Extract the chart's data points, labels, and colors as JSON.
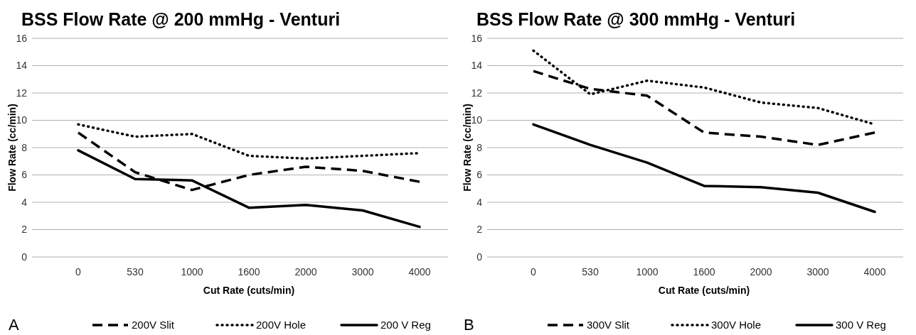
{
  "chart_data": [
    {
      "type": "line",
      "title": "BSS Flow Rate @ 200 mmHg - Venturi",
      "xlabel": "Cut Rate (cuts/min)",
      "ylabel": "Flow Rate (cc/min)",
      "categories": [
        "0",
        "530",
        "1000",
        "1600",
        "2000",
        "3000",
        "4000"
      ],
      "ylim": [
        0,
        16
      ],
      "yticks": [
        0,
        2,
        4,
        6,
        8,
        10,
        12,
        14,
        16
      ],
      "grid": "y",
      "legend": "bottom",
      "marker": "none",
      "annotations": [
        "A"
      ],
      "series": [
        {
          "name": "200V Slit",
          "color": "#000000",
          "line_style": "dashed",
          "values": [
            9.1,
            6.2,
            4.9,
            6.0,
            6.6,
            6.3,
            5.5
          ]
        },
        {
          "name": "200V Hole",
          "color": "#000000",
          "line_style": "dotted",
          "values": [
            9.7,
            8.8,
            9.0,
            7.4,
            7.2,
            7.4,
            7.6
          ]
        },
        {
          "name": "200 V Reg",
          "color": "#000000",
          "line_style": "solid",
          "values": [
            7.8,
            5.7,
            5.6,
            3.6,
            3.8,
            3.4,
            2.2
          ]
        }
      ]
    },
    {
      "type": "line",
      "title": "BSS Flow Rate @ 300 mmHg - Venturi",
      "xlabel": "Cut Rate (cuts/min)",
      "ylabel": "Flow Rate (cc/min)",
      "categories": [
        "0",
        "530",
        "1000",
        "1600",
        "2000",
        "3000",
        "4000"
      ],
      "ylim": [
        0,
        16
      ],
      "yticks": [
        0,
        2,
        4,
        6,
        8,
        10,
        12,
        14,
        16
      ],
      "grid": "y",
      "legend": "bottom",
      "marker": "none",
      "annotations": [
        "B"
      ],
      "series": [
        {
          "name": "300V Slit",
          "color": "#000000",
          "line_style": "dashed",
          "values": [
            13.6,
            12.3,
            11.8,
            9.1,
            8.8,
            8.2,
            9.1
          ]
        },
        {
          "name": "300V Hole",
          "color": "#000000",
          "line_style": "dotted",
          "values": [
            15.1,
            11.9,
            12.9,
            12.4,
            11.3,
            10.9,
            9.7
          ]
        },
        {
          "name": "300 V Reg",
          "color": "#000000",
          "line_style": "solid",
          "values": [
            9.7,
            8.2,
            6.9,
            5.2,
            5.1,
            4.7,
            3.3
          ]
        }
      ]
    }
  ]
}
